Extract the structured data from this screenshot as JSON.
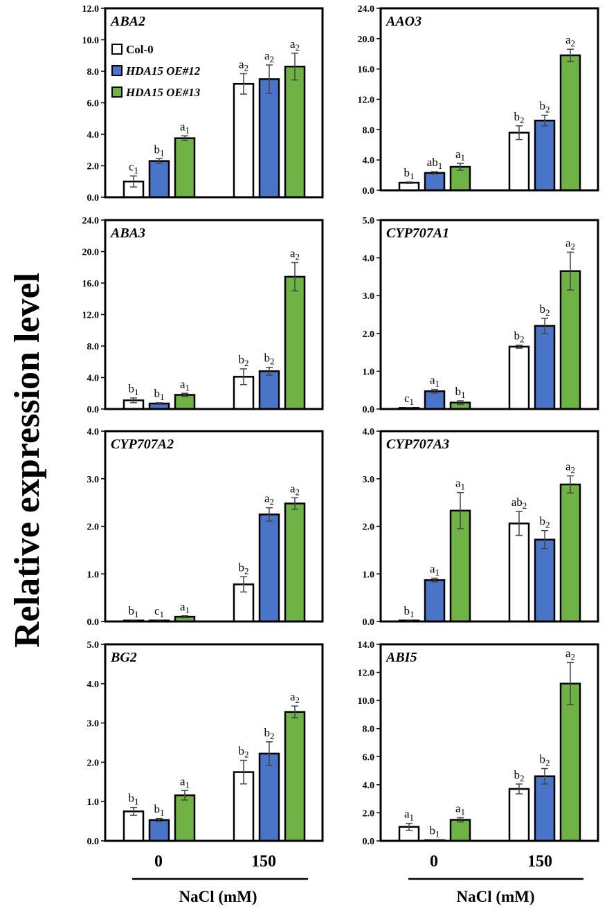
{
  "ylabel": "Relative expression level",
  "xlabel": "NaCl (mM)",
  "categories": [
    "0",
    "150"
  ],
  "legend": {
    "position": "top-left of first panel",
    "entries": [
      {
        "name": "Col-0",
        "color": "#ffffff",
        "italic": false
      },
      {
        "name": "HDA15 OE#12",
        "color": "#4a74c8",
        "italic": true
      },
      {
        "name": "HDA15 OE#13",
        "color": "#6fb245",
        "italic": true
      }
    ]
  },
  "colors": {
    "col0": "#ffffff",
    "oe12": "#4a74c8",
    "oe13": "#6fb245",
    "frame": "#000000"
  },
  "chart_data": [
    {
      "type": "bar",
      "title": "ABA2",
      "categories": [
        "0",
        "150"
      ],
      "ylim": [
        0,
        12
      ],
      "ticks": [
        "0.0",
        "2.0",
        "4.0",
        "6.0",
        "8.0",
        "10.0",
        "12.0"
      ],
      "series": [
        {
          "name": "Col-0",
          "values": [
            1.0,
            7.2
          ],
          "errors": [
            0.35,
            0.65
          ],
          "labels": [
            "c1",
            "a2"
          ]
        },
        {
          "name": "HDA15 OE#12",
          "values": [
            2.3,
            7.5
          ],
          "errors": [
            0.15,
            0.9
          ],
          "labels": [
            "b1",
            "a2"
          ]
        },
        {
          "name": "HDA15 OE#13",
          "values": [
            3.75,
            8.3
          ],
          "errors": [
            0.15,
            0.85
          ],
          "labels": [
            "a1",
            "a2"
          ]
        }
      ]
    },
    {
      "type": "bar",
      "title": "AAO3",
      "categories": [
        "0",
        "150"
      ],
      "ylim": [
        0,
        24
      ],
      "ticks": [
        "0.0",
        "4.0",
        "8.0",
        "12.0",
        "16.0",
        "20.0",
        "24.0"
      ],
      "series": [
        {
          "name": "Col-0",
          "values": [
            1.0,
            7.6
          ],
          "errors": [
            0.1,
            0.9
          ],
          "labels": [
            "b1",
            "b2"
          ]
        },
        {
          "name": "HDA15 OE#12",
          "values": [
            2.3,
            9.2
          ],
          "errors": [
            0.15,
            0.7
          ],
          "labels": [
            "ab1",
            "b2"
          ]
        },
        {
          "name": "HDA15 OE#13",
          "values": [
            3.1,
            17.8
          ],
          "errors": [
            0.45,
            0.8
          ],
          "labels": [
            "a1",
            "a2"
          ]
        }
      ]
    },
    {
      "type": "bar",
      "title": "ABA3",
      "categories": [
        "0",
        "150"
      ],
      "ylim": [
        0,
        24
      ],
      "ticks": [
        "0.0",
        "4.0",
        "8.0",
        "12.0",
        "16.0",
        "20.0",
        "24.0"
      ],
      "series": [
        {
          "name": "Col-0",
          "values": [
            1.1,
            4.1
          ],
          "errors": [
            0.3,
            1.0
          ],
          "labels": [
            "b1",
            "b2"
          ]
        },
        {
          "name": "HDA15 OE#12",
          "values": [
            0.7,
            4.8
          ],
          "errors": [
            0.1,
            0.5
          ],
          "labels": [
            "b1",
            "b2"
          ]
        },
        {
          "name": "HDA15 OE#13",
          "values": [
            1.8,
            16.8
          ],
          "errors": [
            0.2,
            1.8
          ],
          "labels": [
            "a1",
            "a2"
          ]
        }
      ]
    },
    {
      "type": "bar",
      "title": "CYP707A1",
      "categories": [
        "0",
        "150"
      ],
      "ylim": [
        0,
        5
      ],
      "ticks": [
        "0.0",
        "1.0",
        "2.0",
        "3.0",
        "4.0",
        "5.0"
      ],
      "series": [
        {
          "name": "Col-0",
          "values": [
            0.03,
            1.65
          ],
          "errors": [
            0.01,
            0.04
          ],
          "labels": [
            "c1",
            "b2"
          ]
        },
        {
          "name": "HDA15 OE#12",
          "values": [
            0.47,
            2.2
          ],
          "errors": [
            0.05,
            0.2
          ],
          "labels": [
            "a1",
            "b2"
          ]
        },
        {
          "name": "HDA15 OE#13",
          "values": [
            0.17,
            3.65
          ],
          "errors": [
            0.05,
            0.5
          ],
          "labels": [
            "b1",
            "a2"
          ]
        }
      ]
    },
    {
      "type": "bar",
      "title": "CYP707A2",
      "categories": [
        "0",
        "150"
      ],
      "ylim": [
        0,
        4
      ],
      "ticks": [
        "0.0",
        "1.0",
        "2.0",
        "3.0",
        "4.0"
      ],
      "series": [
        {
          "name": "Col-0",
          "values": [
            0.02,
            0.78
          ],
          "errors": [
            0.01,
            0.16
          ],
          "labels": [
            "b1",
            "b2"
          ]
        },
        {
          "name": "HDA15 OE#12",
          "values": [
            0.02,
            2.25
          ],
          "errors": [
            0.01,
            0.14
          ],
          "labels": [
            "c1",
            "a2"
          ]
        },
        {
          "name": "HDA15 OE#13",
          "values": [
            0.1,
            2.48
          ],
          "errors": [
            0.02,
            0.12
          ],
          "labels": [
            "a1",
            "a2"
          ]
        }
      ]
    },
    {
      "type": "bar",
      "title": "CYP707A3",
      "categories": [
        "0",
        "150"
      ],
      "ylim": [
        0,
        4
      ],
      "ticks": [
        "0.0",
        "1.0",
        "2.0",
        "3.0",
        "4.0"
      ],
      "series": [
        {
          "name": "Col-0",
          "values": [
            0.02,
            2.06
          ],
          "errors": [
            0.01,
            0.25
          ],
          "labels": [
            "b1",
            "ab2"
          ]
        },
        {
          "name": "HDA15 OE#12",
          "values": [
            0.87,
            1.72
          ],
          "errors": [
            0.04,
            0.19
          ],
          "labels": [
            "a1",
            "b2"
          ]
        },
        {
          "name": "HDA15 OE#13",
          "values": [
            2.33,
            2.88
          ],
          "errors": [
            0.38,
            0.18
          ],
          "labels": [
            "a1",
            "a2"
          ]
        }
      ]
    },
    {
      "type": "bar",
      "title": "BG2",
      "categories": [
        "0",
        "150"
      ],
      "ylim": [
        0,
        5
      ],
      "ticks": [
        "0.0",
        "1.0",
        "2.0",
        "3.0",
        "4.0",
        "5.0"
      ],
      "series": [
        {
          "name": "Col-0",
          "values": [
            0.75,
            1.75
          ],
          "errors": [
            0.1,
            0.3
          ],
          "labels": [
            "b1",
            "b2"
          ]
        },
        {
          "name": "HDA15 OE#12",
          "values": [
            0.53,
            2.22
          ],
          "errors": [
            0.04,
            0.3
          ],
          "labels": [
            "b1",
            "b2"
          ]
        },
        {
          "name": "HDA15 OE#13",
          "values": [
            1.16,
            3.28
          ],
          "errors": [
            0.12,
            0.15
          ],
          "labels": [
            "a1",
            "a2"
          ]
        }
      ]
    },
    {
      "type": "bar",
      "title": "ABI5",
      "categories": [
        "0",
        "150"
      ],
      "ylim": [
        0,
        14
      ],
      "ticks": [
        "0.0",
        "2.0",
        "4.0",
        "6.0",
        "8.0",
        "10.0",
        "12.0",
        "14.0"
      ],
      "series": [
        {
          "name": "Col-0",
          "values": [
            1.0,
            3.7
          ],
          "errors": [
            0.25,
            0.35
          ],
          "labels": [
            "a1",
            "b2"
          ]
        },
        {
          "name": "HDA15 OE#12",
          "values": [
            0.05,
            4.6
          ],
          "errors": [
            0.02,
            0.55
          ],
          "labels": [
            "b1",
            "b2"
          ]
        },
        {
          "name": "HDA15 OE#13",
          "values": [
            1.5,
            11.2
          ],
          "errors": [
            0.15,
            1.5
          ],
          "labels": [
            "a1",
            "a2"
          ]
        }
      ]
    }
  ]
}
